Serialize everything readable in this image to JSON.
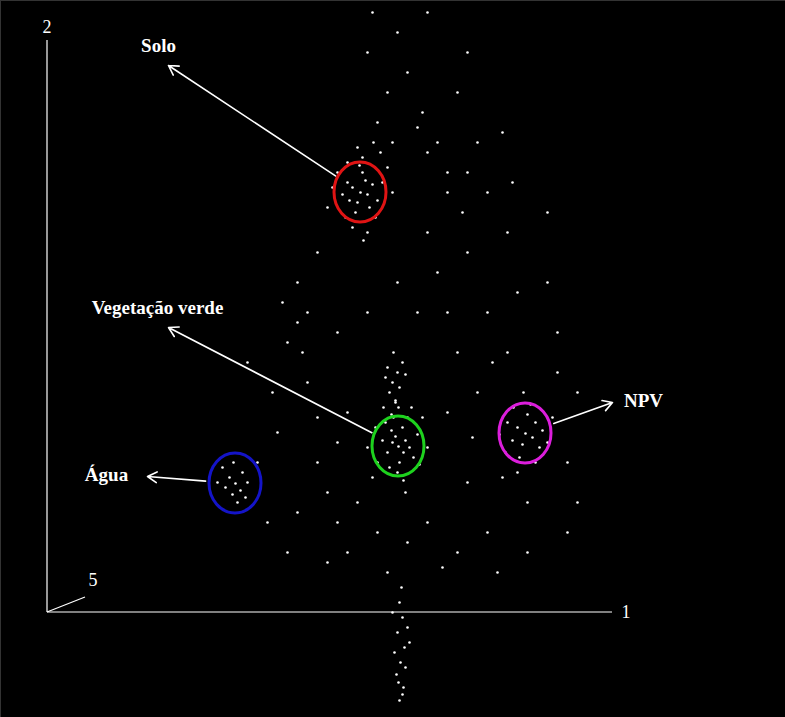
{
  "chart_data": {
    "type": "scatter",
    "xlabel": "1",
    "ylabel": "2",
    "zlabel": "5",
    "color": "#ffffff",
    "xlim": [
      -47,
      738
    ],
    "ylim": [
      -105,
      612
    ],
    "xticks": [
      0
    ],
    "yticks": [
      0
    ],
    "tick_labels": false,
    "grid": false,
    "x": [
      313,
      305,
      320,
      310,
      300,
      325,
      315,
      308,
      330,
      295,
      318,
      302,
      322,
      312,
      290,
      335,
      298,
      328,
      315,
      305,
      340,
      285,
      320,
      310,
      345,
      300,
      333,
      280,
      316,
      326,
      351,
      345,
      356,
      348,
      358,
      340,
      362,
      352,
      344,
      355,
      335,
      366,
      350,
      346,
      360,
      330,
      370,
      338,
      356,
      342,
      372,
      328,
      364,
      348,
      320,
      380,
      336,
      375,
      358,
      325,
      345,
      350,
      342,
      348,
      352,
      338,
      355,
      346,
      340,
      351,
      344,
      358,
      478,
      470,
      485,
      475,
      488,
      465,
      480,
      492,
      460,
      472,
      495,
      483,
      466,
      500,
      458,
      476,
      505,
      488,
      452,
      470,
      188,
      182,
      193,
      185,
      195,
      178,
      190,
      200,
      175,
      186,
      198,
      170,
      250,
      270,
      280,
      290,
      300,
      260,
      230,
      240,
      420,
      430,
      410,
      400,
      390,
      380,
      420,
      440,
      460,
      510,
      520,
      530,
      440,
      410,
      380,
      300,
      330,
      260,
      250,
      270,
      240,
      290,
      320,
      350,
      370,
      400,
      420,
      380,
      460,
      470,
      500,
      510,
      530,
      520,
      480,
      450,
      220,
      210,
      225,
      200,
      235,
      280,
      340,
      360,
      395,
      425,
      290,
      270,
      310,
      400,
      480,
      455,
      445,
      415,
      465,
      500,
      455,
      430,
      250,
      255,
      320,
      325,
      340,
      330,
      360,
      375,
      350,
      390,
      410,
      420,
      380,
      400,
      440,
      370,
      345,
      352,
      355,
      350,
      357,
      353,
      349,
      356,
      352,
      360,
      347,
      354,
      358,
      345,
      362,
      351,
      355
    ],
    "values": [
      420,
      425,
      418,
      410,
      430,
      428,
      440,
      400,
      412,
      418,
      432,
      412,
      405,
      447,
      440,
      430,
      395,
      395,
      455,
      385,
      445,
      425,
      380,
      465,
      420,
      450,
      460,
      405,
      372,
      470,
      166,
      170,
      160,
      176,
      172,
      160,
      165,
      150,
      182,
      185,
      172,
      155,
      140,
      195,
      195,
      150,
      178,
      190,
      132,
      145,
      148,
      185,
      205,
      210,
      165,
      165,
      205,
      195,
      120,
      135,
      230,
      240,
      220,
      212,
      225,
      235,
      250,
      260,
      245,
      205,
      198,
      238,
      179,
      185,
      175,
      168,
      190,
      172,
      198,
      165,
      190,
      155,
      182,
      208,
      205,
      170,
      160,
      220,
      195,
      150,
      178,
      140,
      129,
      135,
      122,
      118,
      140,
      125,
      110,
      130,
      145,
      150,
      115,
      130,
      100,
      150,
      120,
      90,
      200,
      230,
      180,
      60,
      130,
      220,
      260,
      300,
      340,
      380,
      360,
      300,
      260,
      240,
      150,
      110,
      80,
      60,
      90,
      60,
      80,
      300,
      330,
      360,
      270,
      280,
      300,
      330,
      300,
      420,
      440,
      460,
      380,
      320,
      330,
      280,
      220,
      80,
      60,
      40,
      90,
      150,
      220,
      250,
      310,
      50,
      40,
      70,
      45,
      175,
      170,
      195,
      110,
      200,
      110,
      135,
      250,
      400,
      430,
      400,
      480,
      470,
      290,
      260,
      560,
      600,
      520,
      490,
      540,
      500,
      580,
      470,
      520,
      560,
      600,
      440,
      420,
      485,
      470,
      10,
      -5,
      -20,
      -35,
      -50,
      -62,
      -75,
      -88,
      -15,
      -40,
      25,
      -55,
      0,
      -30,
      -70,
      -82
    ],
    "annotations": [
      {
        "text": "Solo",
        "x": 313,
        "y": 420,
        "label_x": 111,
        "label_y": 567,
        "arrow_x": 121,
        "arrow_y": 547,
        "color": "#e01414"
      },
      {
        "text": "Vegetação verde",
        "x": 351,
        "y": 166,
        "label_x": 110,
        "label_y": 305,
        "arrow_x": 121,
        "arrow_y": 285,
        "color": "#1ed21e"
      },
      {
        "text": "NPV",
        "x": 478,
        "y": 179,
        "label_x": 596,
        "label_y": 212,
        "arrow_x": 565,
        "arrow_y": 210,
        "color": "#dc1edc"
      },
      {
        "text": "Água",
        "x": 188,
        "y": 129,
        "label_x": 59,
        "label_y": 138,
        "arrow_x": 100,
        "arrow_y": 136,
        "color": "#1414c8"
      }
    ]
  }
}
